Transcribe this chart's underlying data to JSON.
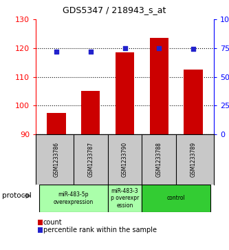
{
  "title": "GDS5347 / 218943_s_at",
  "samples": [
    "GSM1233786",
    "GSM1233787",
    "GSM1233790",
    "GSM1233788",
    "GSM1233789"
  ],
  "bar_values": [
    97.5,
    105.0,
    118.5,
    123.5,
    112.5
  ],
  "dot_values": [
    72,
    72,
    75,
    75,
    74
  ],
  "ylim_left": [
    90,
    130
  ],
  "ylim_right": [
    0,
    100
  ],
  "yticks_left": [
    90,
    100,
    110,
    120,
    130
  ],
  "yticks_right": [
    0,
    25,
    50,
    75,
    100
  ],
  "ytick_labels_right": [
    "0",
    "25",
    "50",
    "75",
    "100%"
  ],
  "bar_color": "#cc0000",
  "dot_color": "#2222cc",
  "protocol_groups": [
    {
      "label": "miR-483-5p\noverexpression",
      "start": 0,
      "end": 2,
      "color": "#aaffaa"
    },
    {
      "label": "miR-483-3\np overexpr\nession",
      "start": 2,
      "end": 3,
      "color": "#aaffaa"
    },
    {
      "label": "control",
      "start": 3,
      "end": 5,
      "color": "#33cc33"
    }
  ],
  "protocol_label": "protocol",
  "legend_count_label": "count",
  "legend_pct_label": "percentile rank within the sample",
  "bg_color": "#ffffff",
  "label_area_bg": "#c8c8c8"
}
